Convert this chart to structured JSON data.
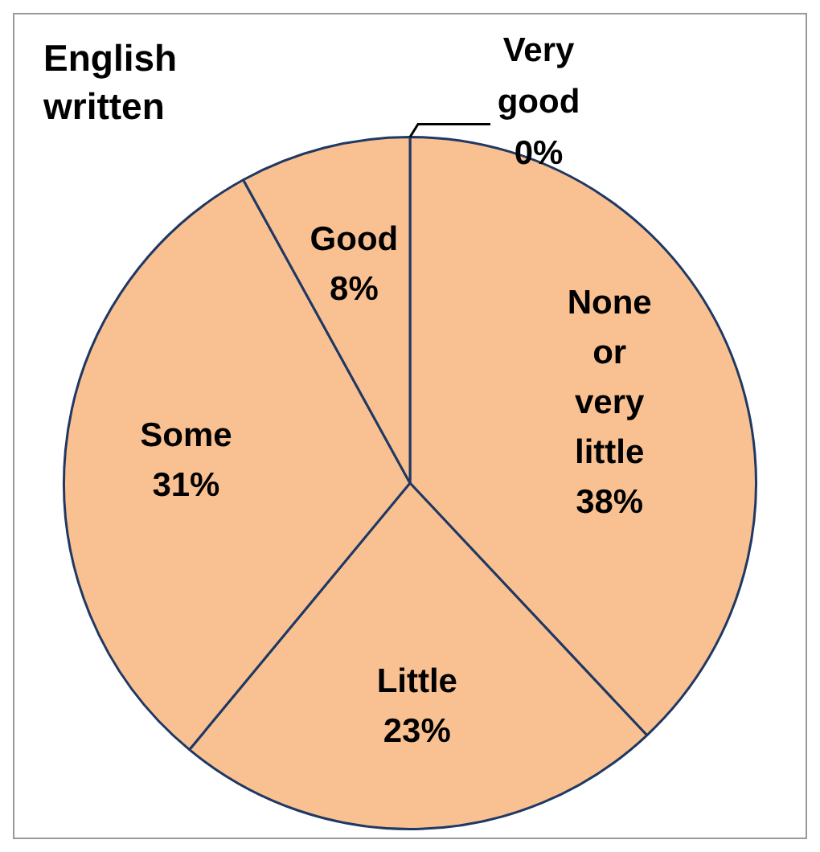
{
  "chart_data": {
    "type": "pie",
    "title": "English written",
    "categories": [
      "Very good",
      "None or very little",
      "Little",
      "Some",
      "Good"
    ],
    "values": [
      0,
      38,
      23,
      31,
      8
    ],
    "colors": [
      "#f9c191",
      "#f9c191",
      "#f9c191",
      "#f9c191",
      "#f9c191"
    ],
    "value_labels": [
      "0%",
      "38%",
      "23%",
      "31%",
      "8%"
    ],
    "legend": false
  }
}
